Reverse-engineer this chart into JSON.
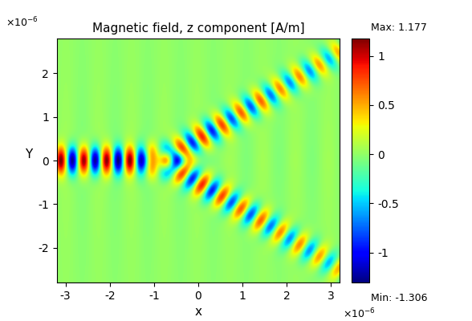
{
  "title": "Magnetic field, z component [A/m]",
  "xlabel": "x",
  "ylabel": "Y",
  "xlim": [
    -3.2e-06,
    3.2e-06
  ],
  "ylim": [
    -2.8e-06,
    2.8e-06
  ],
  "xticks": [
    -3,
    -2,
    -1,
    0,
    1,
    2,
    3
  ],
  "yticks": [
    -2,
    -1,
    0,
    1,
    2
  ],
  "vmin": -1.306,
  "vmax": 1.177,
  "colorbar_max_label": "Max: 1.177",
  "colorbar_min_label": "Min: -1.306",
  "colorbar_ticks": [
    -1,
    -0.5,
    0,
    0.5,
    1
  ],
  "background_color": "#ffffff",
  "fig_width": 5.88,
  "fig_height": 4.0,
  "dpi": 100
}
